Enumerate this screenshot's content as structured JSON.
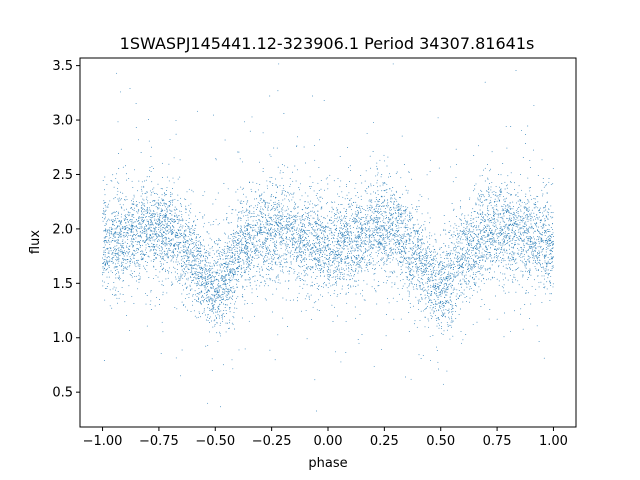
{
  "chart_data": {
    "type": "scatter",
    "title": "1SWASPJ145441.12-323906.1 Period 34307.81641s",
    "xlabel": "phase",
    "ylabel": "flux",
    "xlim": [
      -1.1,
      1.1
    ],
    "ylim": [
      0.18,
      3.57
    ],
    "xticks": [
      -1.0,
      -0.75,
      -0.5,
      -0.25,
      0.0,
      0.25,
      0.5,
      0.75,
      1.0
    ],
    "xtick_labels": [
      "−1.00",
      "−0.75",
      "−0.50",
      "−0.25",
      "0.00",
      "0.25",
      "0.50",
      "0.75",
      "1.00"
    ],
    "yticks": [
      0.5,
      1.0,
      1.5,
      2.0,
      2.5,
      3.0,
      3.5
    ],
    "ytick_labels": [
      "0.5",
      "1.0",
      "1.5",
      "2.0",
      "2.5",
      "3.0",
      "3.5"
    ],
    "grid": false,
    "marker_color": "#1f77b4",
    "phase_range": [
      -1.0,
      1.0
    ],
    "light_curve": {
      "description": "phased eclipsing-binary light curve, dense point cloud",
      "x": [
        -1.0,
        -0.9,
        -0.8,
        -0.75,
        -0.7,
        -0.6,
        -0.55,
        -0.5,
        -0.45,
        -0.4,
        -0.3,
        -0.25,
        -0.2,
        -0.1,
        -0.05,
        0.0,
        0.05,
        0.1,
        0.2,
        0.25,
        0.3,
        0.4,
        0.45,
        0.5,
        0.55,
        0.6,
        0.7,
        0.75,
        0.8,
        0.9,
        1.0
      ],
      "y": [
        1.85,
        1.92,
        1.98,
        2.0,
        1.97,
        1.75,
        1.55,
        1.45,
        1.55,
        1.78,
        1.97,
        2.0,
        1.98,
        1.9,
        1.85,
        1.82,
        1.85,
        1.9,
        1.98,
        2.0,
        1.97,
        1.75,
        1.55,
        1.45,
        1.55,
        1.78,
        1.97,
        2.0,
        1.98,
        1.92,
        1.85
      ],
      "scatter": 0.22
    }
  }
}
